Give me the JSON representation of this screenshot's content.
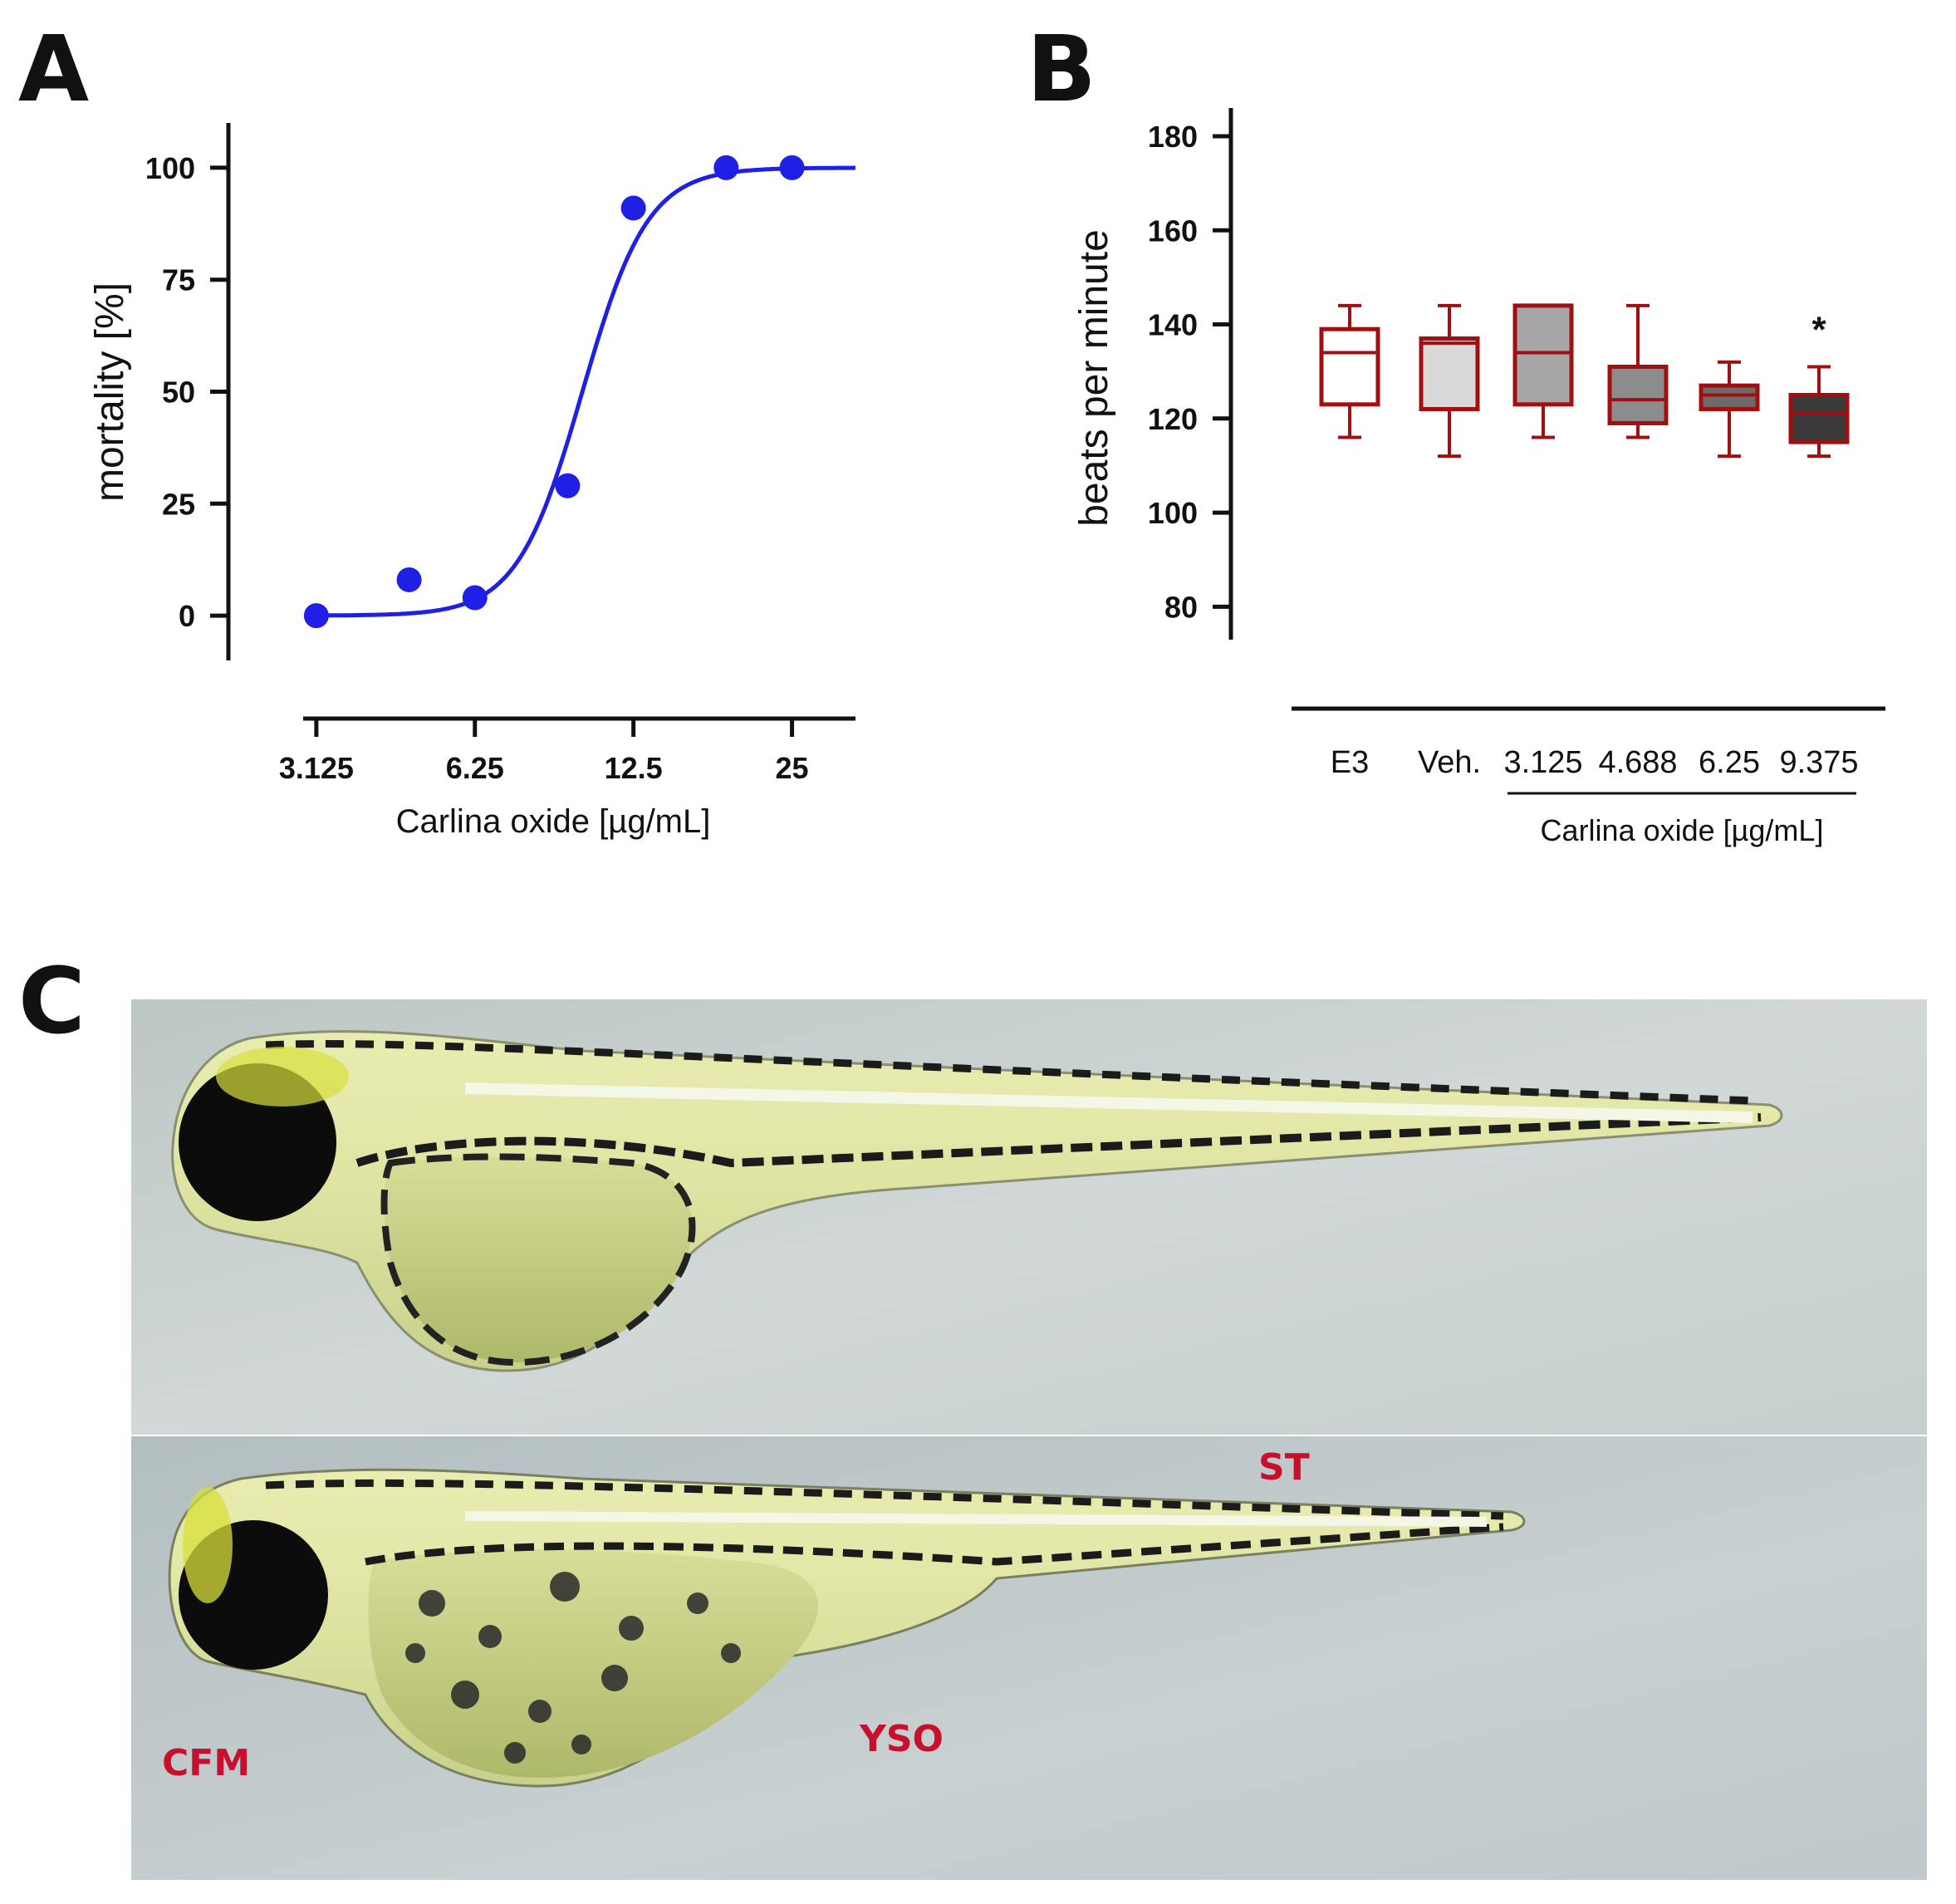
{
  "panels": {
    "a": "A",
    "b": "B",
    "c": "C"
  },
  "colors": {
    "curve": "#1f1fe6",
    "box_edge": "#a01010",
    "axis": "#111111",
    "label_red": "#c8102e",
    "star": "#111111",
    "box_fills": [
      "#ffffff",
      "#d9d9d9",
      "#a6a6a6",
      "#8c8c8c",
      "#6b6b6b",
      "#3a3a3a"
    ]
  },
  "chart_data": [
    {
      "type": "scatter",
      "title": "",
      "xlabel": "Carlina oxide [µg/mL]",
      "ylabel": "mortality [%]",
      "x_scale": "log2",
      "xticks": [
        3.125,
        6.25,
        12.5,
        25
      ],
      "xtick_labels": [
        "3.125",
        "6.25",
        "12.5",
        "25"
      ],
      "xlim": [
        2.95,
        33
      ],
      "yticks": [
        0,
        25,
        50,
        75,
        100
      ],
      "ylim": [
        -10,
        110
      ],
      "points": [
        {
          "x": 3.125,
          "y": 0
        },
        {
          "x": 4.688,
          "y": 8
        },
        {
          "x": 6.25,
          "y": 4
        },
        {
          "x": 9.375,
          "y": 29
        },
        {
          "x": 12.5,
          "y": 91
        },
        {
          "x": 18.75,
          "y": 100
        },
        {
          "x": 25,
          "y": 100
        }
      ],
      "fit": {
        "model": "four-parameter logistic",
        "bottom": 0,
        "top": 100,
        "ec50": 10.0,
        "hill": 7
      }
    },
    {
      "type": "box",
      "title": "",
      "ylabel": "beats per minute",
      "xlabel": "Carlina oxide [µg/mL]",
      "yticks": [
        80,
        100,
        120,
        140,
        160,
        180
      ],
      "ylim": [
        73,
        186
      ],
      "categories": [
        "E3",
        "Veh.",
        "3.125",
        "4.688",
        "6.25",
        "9.375"
      ],
      "boxes": [
        {
          "min": 116,
          "q1": 123,
          "median": 134,
          "q3": 139,
          "max": 144
        },
        {
          "min": 112,
          "q1": 122,
          "median": 136,
          "q3": 137,
          "max": 144
        },
        {
          "min": 116,
          "q1": 123,
          "median": 134,
          "q3": 144,
          "max": 144
        },
        {
          "min": 116,
          "q1": 119,
          "median": 124,
          "q3": 131,
          "max": 144
        },
        {
          "min": 112,
          "q1": 122,
          "median": 125,
          "q3": 127,
          "max": 132
        },
        {
          "min": 112,
          "q1": 115,
          "median": 121,
          "q3": 125,
          "max": 131
        }
      ],
      "significance": [
        {
          "category": "9.375",
          "mark": "*"
        }
      ]
    }
  ],
  "photo": {
    "labels": {
      "cfm": "CFM",
      "yso": "YSO",
      "st": "ST"
    }
  }
}
